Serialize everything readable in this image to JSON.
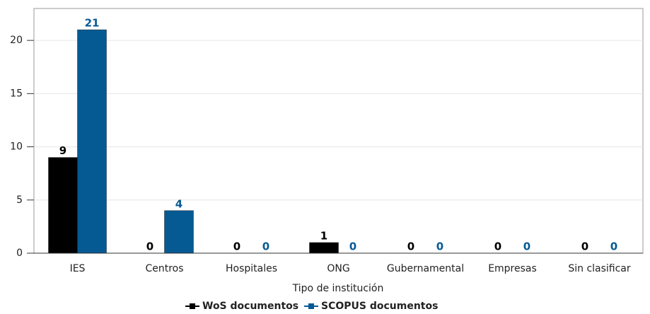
{
  "chart_data": {
    "type": "bar",
    "x_label": "Tipo de institución",
    "categories": [
      "IES",
      "Centros",
      "Hospitales",
      "ONG",
      "Gubernamental",
      "Empresas",
      "Sin clasificar"
    ],
    "series": [
      {
        "name": "WoS documentos",
        "color": "#000000",
        "values": [
          9,
          0,
          0,
          1,
          0,
          0,
          0
        ]
      },
      {
        "name": "SCOPUS documentos",
        "color": "#065a94",
        "values": [
          21,
          4,
          0,
          0,
          0,
          0,
          0
        ]
      }
    ],
    "ylim": [
      0,
      23
    ],
    "yticks": [
      0,
      5,
      10,
      15,
      20
    ],
    "grid": true
  }
}
